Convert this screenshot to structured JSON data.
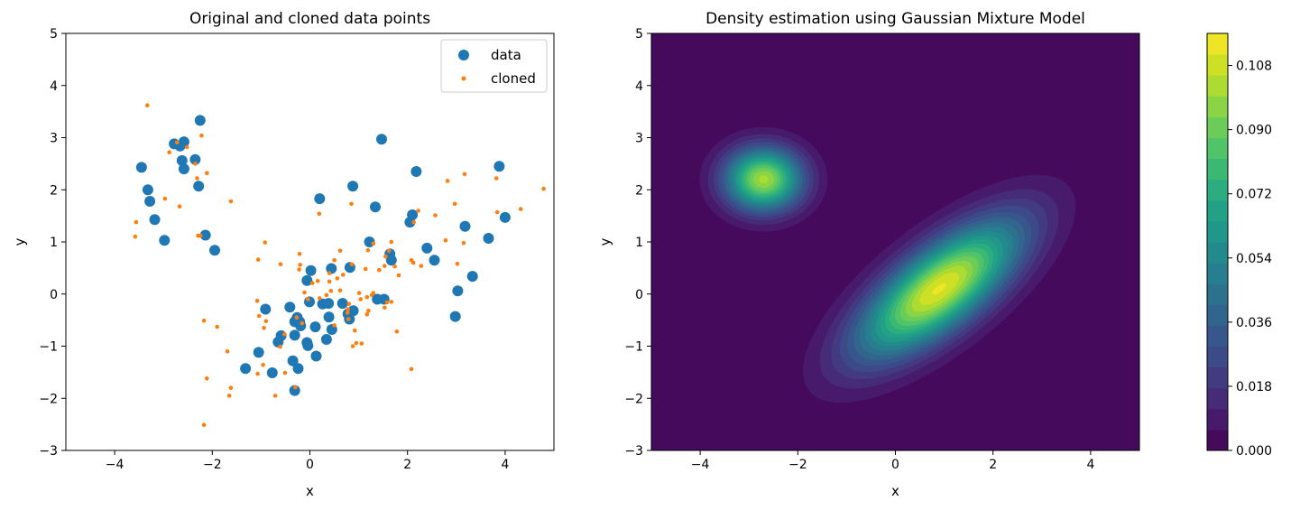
{
  "chart_data": [
    {
      "type": "scatter",
      "title": "Original and cloned data points",
      "xlabel": "x",
      "ylabel": "y",
      "xlim": [
        -5,
        5
      ],
      "ylim": [
        -3,
        5
      ],
      "xticks": [
        -4,
        -2,
        0,
        2,
        4
      ],
      "yticks": [
        -3,
        -2,
        -1,
        0,
        1,
        2,
        3,
        4,
        5
      ],
      "xtick_labels": [
        "−4",
        "−2",
        "0",
        "2",
        "4"
      ],
      "ytick_labels": [
        "−3",
        "−2",
        "−1",
        "0",
        "1",
        "2",
        "3",
        "4",
        "5"
      ],
      "legend_position": "top-right",
      "series": [
        {
          "name": "data",
          "color": "#1f77b4",
          "points": [
            [
              -2.25,
              3.33
            ],
            [
              -2.58,
              2.92
            ],
            [
              -2.78,
              2.88
            ],
            [
              -2.66,
              2.84
            ],
            [
              -2.35,
              2.58
            ],
            [
              -2.62,
              2.56
            ],
            [
              -3.45,
              2.43
            ],
            [
              -2.58,
              2.4
            ],
            [
              -2.28,
              2.07
            ],
            [
              -3.32,
              2.0
            ],
            [
              -3.28,
              1.78
            ],
            [
              -3.18,
              1.43
            ],
            [
              -2.98,
              1.03
            ],
            [
              -2.14,
              1.13
            ],
            [
              -1.95,
              0.84
            ],
            [
              1.47,
              2.97
            ],
            [
              2.18,
              2.35
            ],
            [
              3.88,
              2.45
            ],
            [
              0.88,
              2.07
            ],
            [
              0.2,
              1.83
            ],
            [
              1.34,
              1.67
            ],
            [
              2.1,
              1.52
            ],
            [
              2.05,
              1.38
            ],
            [
              3.18,
              1.3
            ],
            [
              4.0,
              1.47
            ],
            [
              3.66,
              1.07
            ],
            [
              1.22,
              1.0
            ],
            [
              2.4,
              0.88
            ],
            [
              1.64,
              0.77
            ],
            [
              1.67,
              0.65
            ],
            [
              2.55,
              0.65
            ],
            [
              0.82,
              0.51
            ],
            [
              0.02,
              0.45
            ],
            [
              0.44,
              0.49
            ],
            [
              3.33,
              0.34
            ],
            [
              -0.06,
              0.26
            ],
            [
              3.03,
              0.06
            ],
            [
              1.38,
              -0.1
            ],
            [
              1.52,
              -0.1
            ],
            [
              0.26,
              -0.19
            ],
            [
              0.38,
              -0.18
            ],
            [
              0.67,
              -0.18
            ],
            [
              -0.01,
              -0.15
            ],
            [
              -0.41,
              -0.25
            ],
            [
              0.89,
              -0.32
            ],
            [
              0.78,
              -0.38
            ],
            [
              -0.91,
              -0.29
            ],
            [
              -0.26,
              -0.45
            ],
            [
              0.39,
              -0.44
            ],
            [
              0.81,
              -0.48
            ],
            [
              -0.31,
              -0.53
            ],
            [
              -0.21,
              -0.53
            ],
            [
              2.98,
              -0.43
            ],
            [
              0.11,
              -0.63
            ],
            [
              -0.19,
              -0.61
            ],
            [
              0.45,
              -0.68
            ],
            [
              -0.59,
              -0.8
            ],
            [
              -0.31,
              -0.79
            ],
            [
              0.34,
              -0.87
            ],
            [
              -0.65,
              -0.92
            ],
            [
              -0.06,
              -0.93
            ],
            [
              -0.04,
              -0.99
            ],
            [
              -1.05,
              -1.12
            ],
            [
              0.13,
              -1.19
            ],
            [
              -0.35,
              -1.28
            ],
            [
              -0.24,
              -1.43
            ],
            [
              -1.32,
              -1.43
            ],
            [
              -0.77,
              -1.51
            ],
            [
              -0.31,
              -1.85
            ]
          ]
        },
        {
          "name": "cloned",
          "color": "#ff7f0e",
          "points": [
            [
              -3.33,
              3.62
            ],
            [
              -2.22,
              3.04
            ],
            [
              -2.72,
              2.91
            ],
            [
              -2.52,
              2.82
            ],
            [
              -2.88,
              2.72
            ],
            [
              -2.35,
              2.5
            ],
            [
              -2.11,
              2.32
            ],
            [
              -2.31,
              2.22
            ],
            [
              -2.97,
              1.83
            ],
            [
              -1.62,
              1.78
            ],
            [
              -2.67,
              1.68
            ],
            [
              -3.56,
              1.38
            ],
            [
              -3.58,
              1.1
            ],
            [
              -2.29,
              1.12
            ],
            [
              -2.24,
              1.12
            ],
            [
              -0.92,
              0.99
            ],
            [
              -0.6,
              0.57
            ],
            [
              -1.06,
              0.66
            ],
            [
              -1.08,
              -0.13
            ],
            [
              -0.9,
              -0.52
            ],
            [
              -2.17,
              -0.51
            ],
            [
              -1.9,
              -0.63
            ],
            [
              -1.04,
              -0.42
            ],
            [
              -0.94,
              -0.65
            ],
            [
              -0.52,
              -0.77
            ],
            [
              -0.61,
              -1.01
            ],
            [
              -1.69,
              -1.1
            ],
            [
              -0.96,
              -1.36
            ],
            [
              -1.07,
              -1.53
            ],
            [
              -0.51,
              -1.51
            ],
            [
              -2.11,
              -1.62
            ],
            [
              -1.62,
              -1.8
            ],
            [
              -1.65,
              -1.95
            ],
            [
              -0.71,
              -1.95
            ],
            [
              -0.3,
              -1.79
            ],
            [
              -2.17,
              -2.51
            ],
            [
              -0.21,
              0.77
            ],
            [
              -0.2,
              0.56
            ],
            [
              -0.22,
              0.47
            ],
            [
              0.19,
              1.54
            ],
            [
              0.5,
              0.65
            ],
            [
              0.4,
              0.4
            ],
            [
              0.4,
              0.24
            ],
            [
              0.68,
              0.37
            ],
            [
              0.62,
              0.83
            ],
            [
              0.86,
              0.57
            ],
            [
              0.85,
              1.73
            ],
            [
              1.14,
              0.48
            ],
            [
              1.19,
              0.84
            ],
            [
              1.3,
              0.97
            ],
            [
              1.55,
              0.72
            ],
            [
              1.53,
              0.54
            ],
            [
              1.62,
              0.83
            ],
            [
              1.67,
              1.0
            ],
            [
              1.74,
              0.53
            ],
            [
              1.42,
              0.46
            ],
            [
              1.82,
              0.36
            ],
            [
              2.08,
              0.65
            ],
            [
              2.12,
              0.6
            ],
            [
              2.13,
              1.38
            ],
            [
              2.22,
              1.6
            ],
            [
              2.28,
              0.54
            ],
            [
              2.57,
              1.51
            ],
            [
              2.78,
              1.03
            ],
            [
              2.82,
              2.17
            ],
            [
              2.97,
              1.73
            ],
            [
              3.15,
              0.98
            ],
            [
              3.17,
              2.3
            ],
            [
              3.02,
              0.58
            ],
            [
              3.82,
              2.22
            ],
            [
              3.84,
              1.57
            ],
            [
              4.32,
              1.63
            ],
            [
              4.79,
              2.02
            ],
            [
              2.08,
              -1.44
            ],
            [
              1.78,
              -0.72
            ],
            [
              1.53,
              -0.26
            ],
            [
              1.58,
              -0.16
            ],
            [
              1.67,
              -0.15
            ],
            [
              1.2,
              -0.32
            ],
            [
              1.04,
              -0.1
            ],
            [
              1.17,
              -0.06
            ],
            [
              1.27,
              -0.02
            ],
            [
              1.3,
              0.02
            ],
            [
              1.01,
              0.02
            ],
            [
              0.62,
              0.07
            ],
            [
              0.34,
              -0.02
            ],
            [
              0.2,
              -0.08
            ],
            [
              0.05,
              0.21
            ],
            [
              -0.11,
              0.03
            ],
            [
              0.78,
              -0.29
            ],
            [
              0.79,
              -0.48
            ],
            [
              0.77,
              -0.36
            ],
            [
              0.92,
              -0.7
            ],
            [
              0.95,
              -0.94
            ],
            [
              1.06,
              -0.95
            ],
            [
              1.17,
              -0.39
            ],
            [
              0.88,
              -1.0
            ],
            [
              -0.27,
              -0.45
            ],
            [
              -0.16,
              -0.56
            ],
            [
              -0.04,
              -0.1
            ],
            [
              0.5,
              -0.6
            ],
            [
              0.16,
              0.25
            ],
            [
              0.43,
              0.06
            ],
            [
              0.56,
              0.3
            ],
            [
              0.8,
              -0.19
            ]
          ]
        }
      ]
    },
    {
      "type": "heatmap",
      "title": "Density estimation using Gaussian Mixture Model",
      "xlabel": "x",
      "ylabel": "y",
      "xlim": [
        -5,
        5
      ],
      "ylim": [
        -3,
        5
      ],
      "xticks": [
        -4,
        -2,
        0,
        2,
        4
      ],
      "yticks": [
        -3,
        -2,
        -1,
        0,
        1,
        2,
        3,
        4,
        5
      ],
      "xtick_labels": [
        "−4",
        "−2",
        "0",
        "2",
        "4"
      ],
      "ytick_labels": [
        "−3",
        "−2",
        "−1",
        "0",
        "1",
        "2",
        "3",
        "4",
        "5"
      ],
      "colormap": "viridis",
      "components": [
        {
          "mean": [
            -2.7,
            2.2
          ],
          "sx": 0.42,
          "sy": 0.55,
          "rho": 0.0,
          "peak": 0.101
        },
        {
          "mean": [
            0.9,
            0.1
          ],
          "sx": 1.15,
          "sy": 0.9,
          "rho": 0.72,
          "peak": 0.112
        }
      ],
      "colorbar": {
        "min": 0.0,
        "max": 0.117,
        "levels": 20,
        "ticks": [
          0.0,
          0.018,
          0.036,
          0.054,
          0.072,
          0.09,
          0.108
        ],
        "tick_labels": [
          "0.000",
          "0.018",
          "0.036",
          "0.054",
          "0.072",
          "0.090",
          "0.108"
        ]
      }
    }
  ]
}
